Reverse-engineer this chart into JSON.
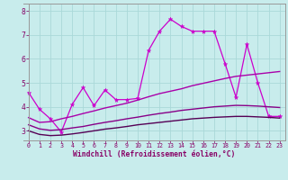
{
  "xlabel": "Windchill (Refroidissement éolien,°C)",
  "background_color": "#c8ecec",
  "grid_color": "#aad8d8",
  "xlim": [
    -0.5,
    23.5
  ],
  "ylim": [
    2.6,
    8.3
  ],
  "yticks": [
    3,
    4,
    5,
    6,
    7,
    8
  ],
  "xticks": [
    0,
    1,
    2,
    3,
    4,
    5,
    6,
    7,
    8,
    9,
    10,
    11,
    12,
    13,
    14,
    15,
    16,
    17,
    18,
    19,
    20,
    21,
    22,
    23
  ],
  "line_jagged": {
    "x": [
      0,
      1,
      2,
      3,
      4,
      5,
      6,
      7,
      8,
      9,
      10,
      11,
      12,
      13,
      14,
      15,
      16,
      17,
      18,
      19,
      20,
      21,
      22,
      23
    ],
    "y": [
      4.6,
      3.9,
      3.5,
      2.95,
      4.1,
      4.8,
      4.05,
      4.7,
      4.3,
      4.3,
      4.35,
      6.35,
      7.15,
      7.65,
      7.35,
      7.15,
      7.15,
      7.15,
      5.8,
      4.4,
      6.6,
      5.0,
      3.6,
      3.6
    ],
    "color": "#cc00cc",
    "lw": 0.9
  },
  "line_smooth1": {
    "x": [
      0,
      1,
      2,
      3,
      4,
      5,
      6,
      7,
      8,
      9,
      10,
      11,
      12,
      13,
      14,
      15,
      16,
      17,
      18,
      19,
      20,
      21,
      22,
      23
    ],
    "y": [
      3.55,
      3.35,
      3.38,
      3.5,
      3.6,
      3.72,
      3.83,
      3.95,
      4.05,
      4.15,
      4.28,
      4.42,
      4.55,
      4.65,
      4.75,
      4.88,
      4.98,
      5.08,
      5.18,
      5.27,
      5.32,
      5.37,
      5.42,
      5.47
    ],
    "color": "#aa00aa",
    "lw": 1.0
  },
  "line_smooth2": {
    "x": [
      0,
      1,
      2,
      3,
      4,
      5,
      6,
      7,
      8,
      9,
      10,
      11,
      12,
      13,
      14,
      15,
      16,
      17,
      18,
      19,
      20,
      21,
      22,
      23
    ],
    "y": [
      3.25,
      3.08,
      3.02,
      3.05,
      3.12,
      3.18,
      3.27,
      3.35,
      3.42,
      3.5,
      3.57,
      3.65,
      3.72,
      3.78,
      3.85,
      3.9,
      3.95,
      4.0,
      4.03,
      4.06,
      4.05,
      4.03,
      4.0,
      3.97
    ],
    "color": "#880088",
    "lw": 1.0
  },
  "line_smooth3": {
    "x": [
      0,
      1,
      2,
      3,
      4,
      5,
      6,
      7,
      8,
      9,
      10,
      11,
      12,
      13,
      14,
      15,
      16,
      17,
      18,
      19,
      20,
      21,
      22,
      23
    ],
    "y": [
      3.0,
      2.85,
      2.8,
      2.82,
      2.87,
      2.93,
      3.0,
      3.07,
      3.12,
      3.18,
      3.25,
      3.3,
      3.35,
      3.4,
      3.45,
      3.5,
      3.53,
      3.56,
      3.58,
      3.6,
      3.6,
      3.58,
      3.56,
      3.53
    ],
    "color": "#550055",
    "lw": 1.0
  }
}
